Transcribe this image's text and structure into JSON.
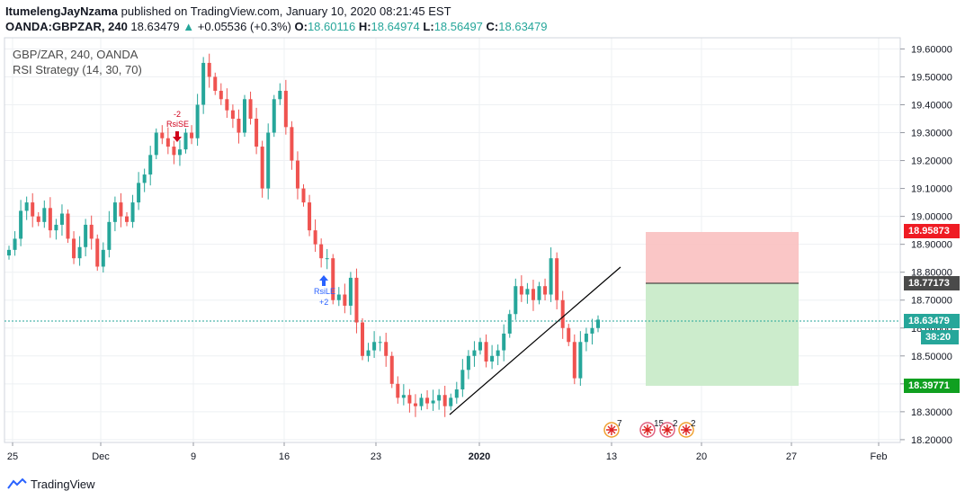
{
  "header": {
    "author": "ItumelengJayNzama",
    "published": "published on TradingView.com, January 10, 2020 08:21:45 EST",
    "symbol": "OANDA:GBPZAR, 240",
    "last": "18.63479",
    "change": "+0.05536 (+0.3%)",
    "o_label": "O:",
    "o_val": "18.60116",
    "h_label": "H:",
    "h_val": "18.64974",
    "l_label": "L:",
    "l_val": "18.56497",
    "c_label": "C:",
    "c_val": "18.63479"
  },
  "legend": {
    "symbol": "GBP/ZAR, 240, OANDA",
    "strategy": "RSI Strategy (14, 30, 70)"
  },
  "price_axis": {
    "ticks": [
      "19.60000",
      "19.50000",
      "19.40000",
      "19.30000",
      "19.20000",
      "19.10000",
      "19.00000",
      "18.90000",
      "18.80000",
      "18.70000",
      "18.60000",
      "18.50000",
      "18.40000",
      "18.30000",
      "18.20000"
    ],
    "stop_label": "18.95873",
    "entry_label": "18.77173",
    "last_label": "18.63479",
    "countdown": "38:20",
    "target_label": "18.39771"
  },
  "time_axis": {
    "ticks": [
      "25",
      "Dec",
      "9",
      "16",
      "23",
      "2020",
      "13",
      "20",
      "27",
      "Feb"
    ]
  },
  "signals": {
    "short_count": "-2",
    "short_label": "RsiSE",
    "long_label": "RsiLE",
    "long_count": "+2"
  },
  "events": [
    "7",
    "15",
    "2",
    "2"
  ],
  "footer": {
    "brand": "TradingView"
  },
  "colors": {
    "up": "#26a69a",
    "down": "#ef5350",
    "stop_zone": "#f9c0c0",
    "target_zone": "#c9ebc9",
    "stop_badge": "#ef1b23",
    "entry_badge": "#4a4a4a",
    "last_badge": "#26a69a",
    "target_badge": "#10a020",
    "signal_short": "#d0021b",
    "signal_long": "#2962ff"
  },
  "chart_data": {
    "type": "candlestick",
    "symbol": "GBP/ZAR",
    "timeframe": "240",
    "ylim": [
      18.19,
      19.64
    ],
    "last_price": 18.63479,
    "trendline": {
      "from": [
        "2020-01-01",
        18.28
      ],
      "to": [
        "2020-01-13",
        18.82
      ]
    },
    "position": {
      "entry": 18.77173,
      "stop": 18.95873,
      "target": 18.39771
    },
    "closes": [
      18.88,
      18.92,
      19.02,
      19.05,
      19.0,
      18.98,
      19.03,
      18.95,
      18.97,
      19.01,
      18.92,
      18.85,
      18.89,
      18.97,
      18.92,
      18.82,
      18.88,
      18.98,
      19.05,
      19.0,
      18.98,
      19.05,
      19.12,
      19.15,
      19.22,
      19.3,
      19.28,
      19.25,
      19.22,
      19.24,
      19.3,
      19.28,
      19.4,
      19.55,
      19.5,
      19.45,
      19.42,
      19.38,
      19.35,
      19.3,
      19.42,
      19.35,
      19.25,
      19.1,
      19.3,
      19.42,
      19.45,
      19.32,
      19.2,
      19.1,
      19.05,
      18.95,
      18.9,
      18.85,
      18.85,
      18.7,
      18.72,
      18.68,
      18.78,
      18.62,
      18.5,
      18.52,
      18.55,
      18.55,
      18.5,
      18.4,
      18.35,
      18.36,
      18.33,
      18.32,
      18.35,
      18.33,
      18.34,
      18.36,
      18.32,
      18.35,
      18.38,
      18.45,
      18.5,
      18.52,
      18.55,
      18.48,
      18.5,
      18.52,
      18.58,
      18.65,
      18.75,
      18.72,
      18.74,
      18.7,
      18.75,
      18.72,
      18.85,
      18.7,
      18.6,
      18.55,
      18.42,
      18.55,
      18.58,
      18.6,
      18.63
    ]
  }
}
